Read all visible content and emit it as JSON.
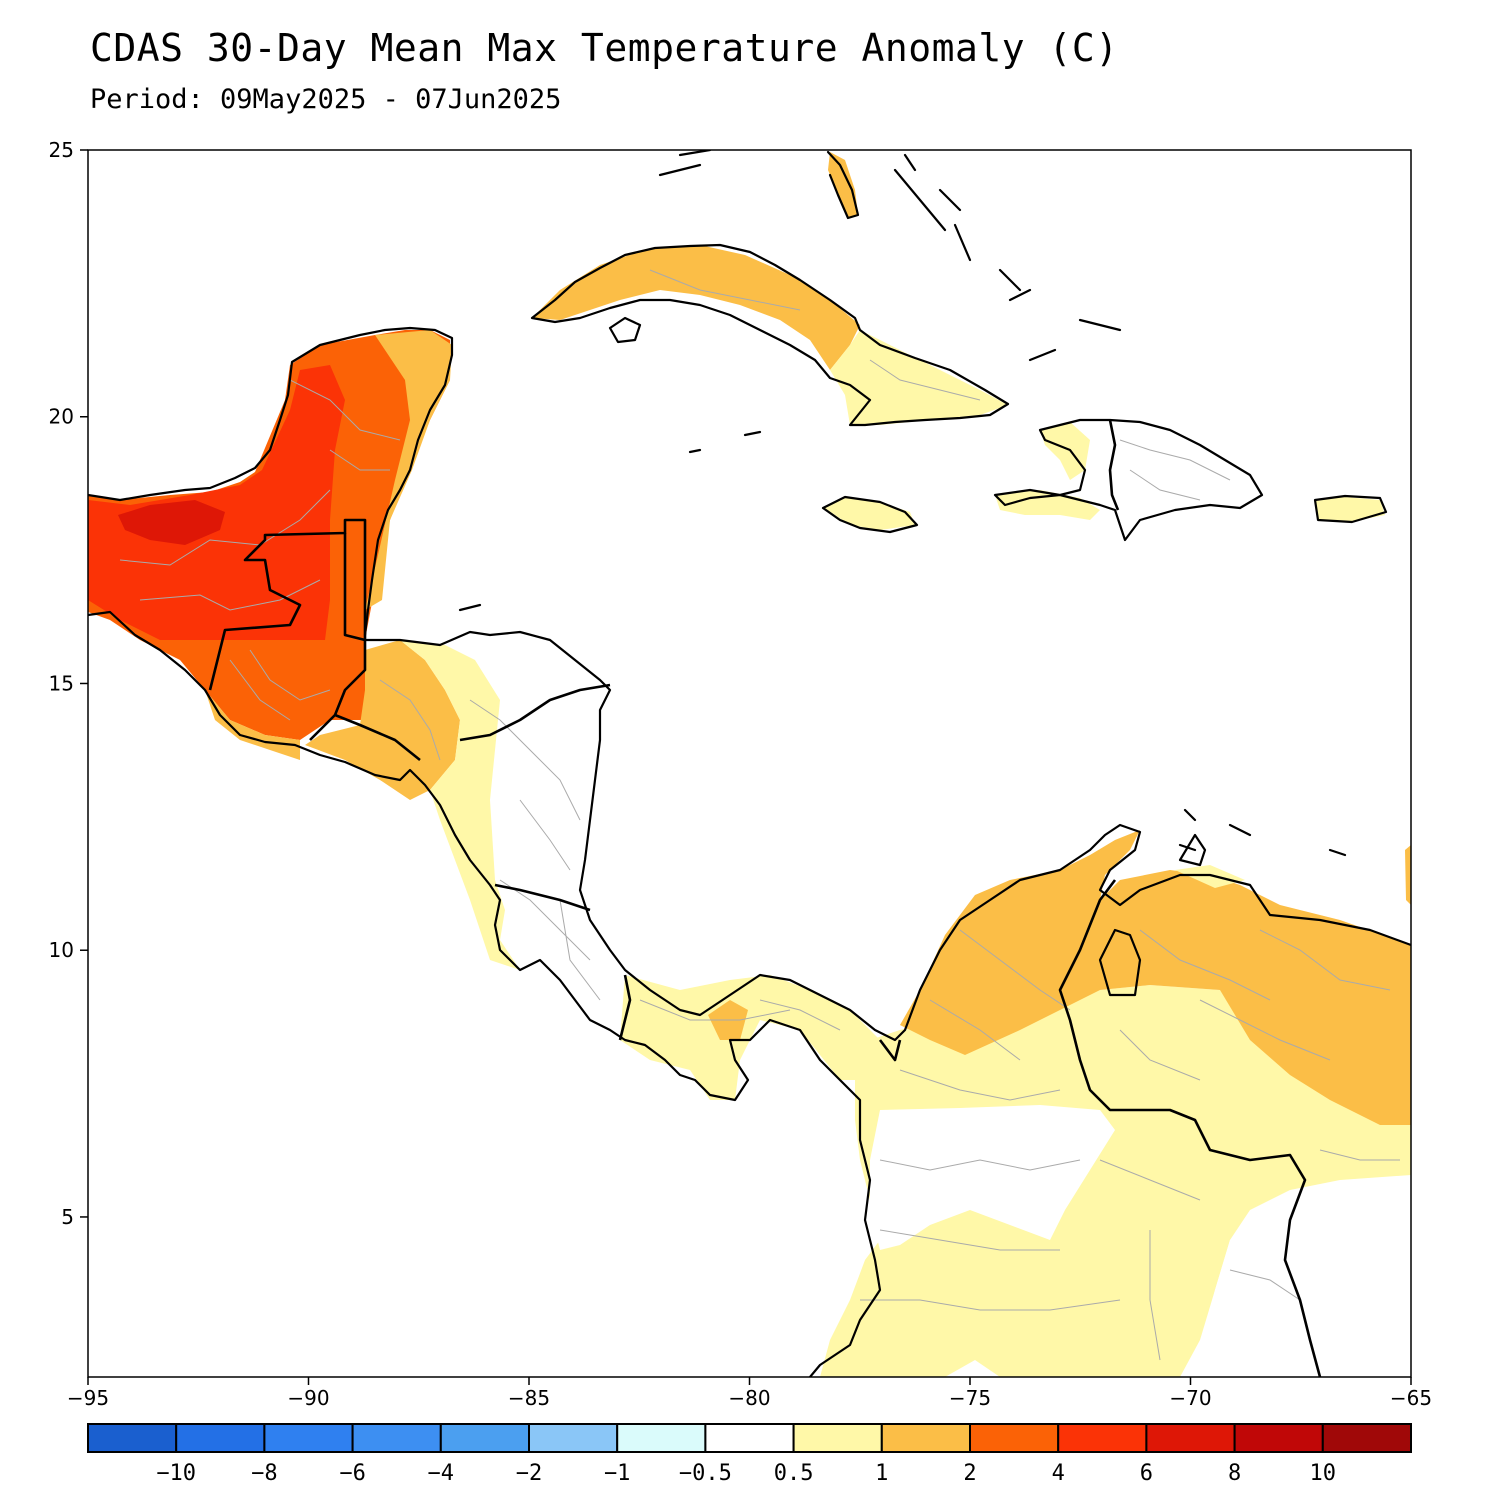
{
  "title": "CDAS 30-Day Mean Max Temperature Anomaly (C)",
  "subtitle": "Period: 09May2025 - 07Jun2025",
  "map": {
    "lon_range": [
      -95,
      -65
    ],
    "lat_range": [
      2,
      25
    ],
    "x_ticks": [
      {
        "value": -95,
        "label": "−95"
      },
      {
        "value": -90,
        "label": "−90"
      },
      {
        "value": -85,
        "label": "−85"
      },
      {
        "value": -80,
        "label": "−80"
      },
      {
        "value": -75,
        "label": "−75"
      },
      {
        "value": -70,
        "label": "−70"
      },
      {
        "value": -65,
        "label": "−65"
      }
    ],
    "y_ticks": [
      {
        "value": 25,
        "label": "25"
      },
      {
        "value": 20,
        "label": "20"
      },
      {
        "value": 15,
        "label": "15"
      },
      {
        "value": 10,
        "label": "10"
      },
      {
        "value": 5,
        "label": "5"
      }
    ]
  },
  "colorbar": {
    "colors": [
      "#1a5fcf",
      "#2370e6",
      "#2f80f0",
      "#3d8ff2",
      "#4b9ff0",
      "#8ac6f7",
      "#dafbfb",
      "#ffffff",
      "#fff8a8",
      "#fbbe47",
      "#fb6206",
      "#fb3306",
      "#de1706",
      "#c00707",
      "#a00808"
    ],
    "labels": [
      "−10",
      "−8",
      "−6",
      "−4",
      "−2",
      "−1",
      "−0.5",
      "0.5",
      "1",
      "2",
      "4",
      "6",
      "8",
      "10"
    ]
  },
  "anomaly_colors": {
    "1": "#fff8a8",
    "2": "#fbbe47",
    "4": "#fb6206",
    "6": "#fb3306",
    "8": "#de1706"
  }
}
